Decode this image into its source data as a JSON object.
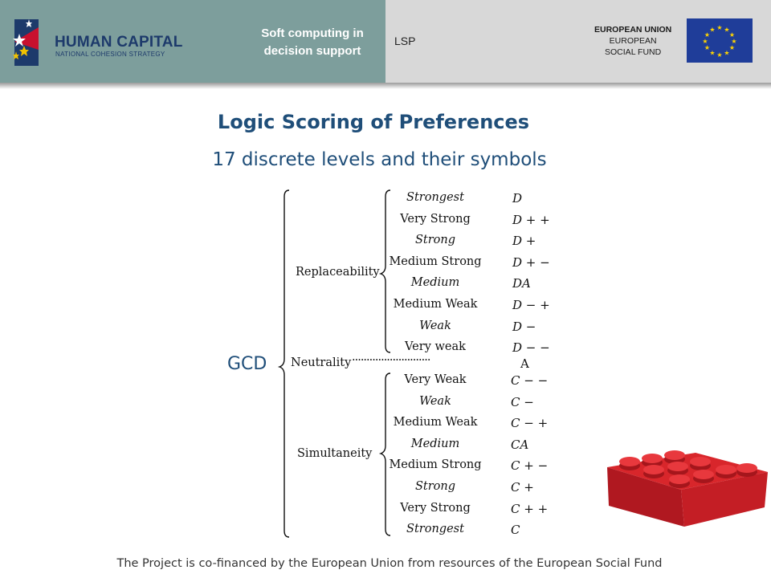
{
  "header": {
    "hc_logo_title": "HUMAN CAPITAL",
    "hc_logo_subtitle": "NATIONAL COHESION STRATEGY",
    "course_line1": "Soft computing in",
    "course_line2": "decision support",
    "topic": "LSP",
    "eu_line1": "EUROPEAN UNION",
    "eu_line2": "EUROPEAN",
    "eu_line3": "SOCIAL FUND",
    "left_bg": "#7d9e9c",
    "right_bg": "#d8d8d8"
  },
  "slide": {
    "title": "Logic Scoring of Preferences",
    "subtitle": "17 discrete levels and their symbols"
  },
  "diagram": {
    "root": "GCD",
    "replaceability": {
      "label": "Replaceability",
      "levels": [
        {
          "name": "Strongest",
          "symbol": "D",
          "italic": true
        },
        {
          "name": "Very Strong",
          "symbol": "D + +",
          "italic": false
        },
        {
          "name": "Strong",
          "symbol": "D +",
          "italic": true
        },
        {
          "name": "Medium Strong",
          "symbol": "D + −",
          "italic": false
        },
        {
          "name": "Medium",
          "symbol": "DA",
          "italic": true
        },
        {
          "name": "Medium Weak",
          "symbol": "D − +",
          "italic": false
        },
        {
          "name": "Weak",
          "symbol": "D −",
          "italic": true
        },
        {
          "name": "Very weak",
          "symbol": "D − −",
          "italic": false
        }
      ]
    },
    "neutrality": {
      "label": "Neutrality",
      "dots": "···························",
      "symbol": "A"
    },
    "simultaneity": {
      "label": "Simultaneity",
      "levels": [
        {
          "name": "Very Weak",
          "symbol": "C − −",
          "italic": false
        },
        {
          "name": "Weak",
          "symbol": "C −",
          "italic": true
        },
        {
          "name": "Medium Weak",
          "symbol": "C − +",
          "italic": false
        },
        {
          "name": "Medium",
          "symbol": "CA",
          "italic": true
        },
        {
          "name": "Medium Strong",
          "symbol": "C + −",
          "italic": false
        },
        {
          "name": "Strong",
          "symbol": "C +",
          "italic": true
        },
        {
          "name": "Very Strong",
          "symbol": "C + +",
          "italic": false
        },
        {
          "name": "Strongest",
          "symbol": "C",
          "italic": true
        }
      ]
    }
  },
  "footer": {
    "text": "The Project is co-financed by the European Union from resources of the European Social Fund"
  }
}
